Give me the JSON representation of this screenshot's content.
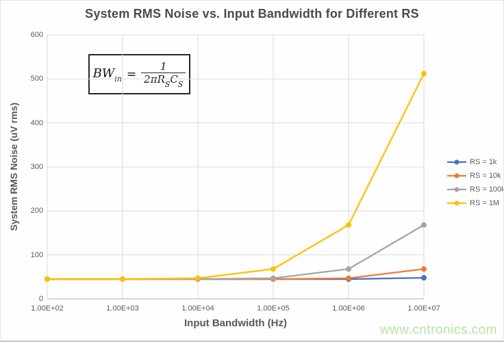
{
  "page": {
    "watermark": "www.cntronics.com"
  },
  "formula": {
    "lhs_main": "BW",
    "lhs_sub": "in",
    "equals": "=",
    "numerator": "1",
    "den_coeff": "2π",
    "den_R": "R",
    "den_R_sub": "S",
    "den_C": "C",
    "den_C_sub": "S"
  },
  "chart_data": {
    "type": "line",
    "title": "System RMS Noise vs. Input Bandwidth for Different RS",
    "xlabel": "Input Bandwidth (Hz)",
    "ylabel": "System RMS Noise (uV rms)",
    "x_scale": "log",
    "categories": [
      100,
      1000,
      10000,
      100000,
      1000000,
      10000000
    ],
    "x_tick_labels": [
      "1.00E+02",
      "1.00E+03",
      "1.00E+04",
      "1.00E+05",
      "1.00E+06",
      "1.00E+07"
    ],
    "ylim": [
      0,
      600
    ],
    "y_ticks": [
      0,
      100,
      200,
      300,
      400,
      500,
      600
    ],
    "grid": true,
    "legend_position": "right",
    "marker": "circle",
    "series": [
      {
        "name": "RS = 1k",
        "color": "#4472C4",
        "values": [
          45,
          45,
          45,
          45,
          45,
          48
        ]
      },
      {
        "name": "RS = 10k",
        "color": "#ED7D31",
        "values": [
          45,
          45,
          45,
          45,
          47,
          68
        ]
      },
      {
        "name": "RS = 100k",
        "color": "#A5A5A5",
        "values": [
          45,
          45,
          45,
          47,
          68,
          168
        ]
      },
      {
        "name": "RS = 1M",
        "color": "#FFC000",
        "values": [
          45,
          45,
          47,
          68,
          168,
          512
        ]
      }
    ],
    "styles": {
      "gridline_color": "#d9d9d9",
      "axis_line_color": "#bfbfbf",
      "tick_label_color": "#595959"
    }
  }
}
